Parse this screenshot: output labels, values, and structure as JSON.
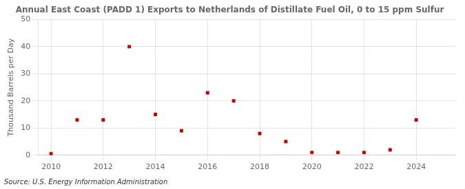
{
  "chart_data": {
    "type": "scatter",
    "title": "Annual East Coast (PADD 1) Exports to Netherlands of Distillate Fuel Oil, 0 to 15 ppm Sulfur",
    "ylabel": "Thousand Barrels per Day",
    "annotations": [
      "Source: U.S. Energy Information Administration"
    ],
    "x": [
      2010,
      2011,
      2012,
      2013,
      2014,
      2015,
      2016,
      2017,
      2018,
      2019,
      2020,
      2021,
      2022,
      2023,
      2024
    ],
    "values": [
      0.5,
      13,
      13,
      40,
      15,
      9,
      23,
      20,
      8,
      5,
      1,
      1,
      1,
      2,
      13
    ],
    "color": "#cc0000",
    "marker": "square",
    "xlim": [
      2009.5,
      2025.5
    ],
    "xticks": [
      2010,
      2012,
      2014,
      2016,
      2018,
      2020,
      2022,
      2024
    ],
    "ylim": [
      0,
      50
    ],
    "yticks": [
      0,
      10,
      20,
      30,
      40,
      50
    ],
    "grid": true
  }
}
